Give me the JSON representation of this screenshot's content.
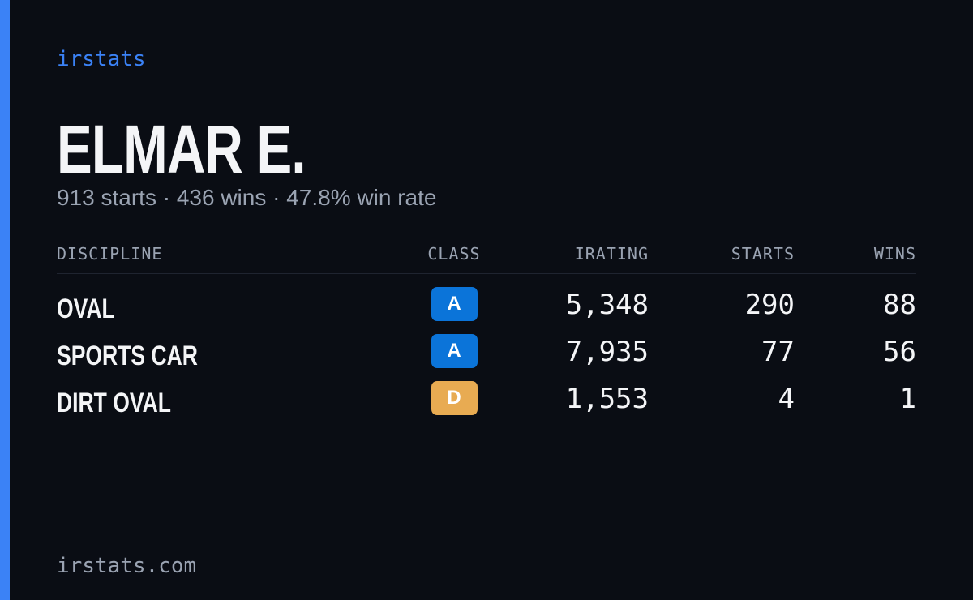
{
  "brand": "irstats",
  "driver": {
    "name": "ELMAR E.",
    "summary": "913 starts · 436 wins · 47.8% win rate"
  },
  "table": {
    "headers": [
      "DISCIPLINE",
      "CLASS",
      "IRATING",
      "STARTS",
      "WINS"
    ],
    "rows": [
      {
        "discipline": "OVAL",
        "class": "A",
        "class_color": "#0b74d9",
        "irating": "5,348",
        "starts": "290",
        "wins": "88"
      },
      {
        "discipline": "SPORTS CAR",
        "class": "A",
        "class_color": "#0b74d9",
        "irating": "7,935",
        "starts": "77",
        "wins": "56"
      },
      {
        "discipline": "DIRT OVAL",
        "class": "D",
        "class_color": "#e8ab52",
        "irating": "1,553",
        "starts": "4",
        "wins": "1"
      }
    ]
  },
  "footer": {
    "site": "irstats.com"
  }
}
